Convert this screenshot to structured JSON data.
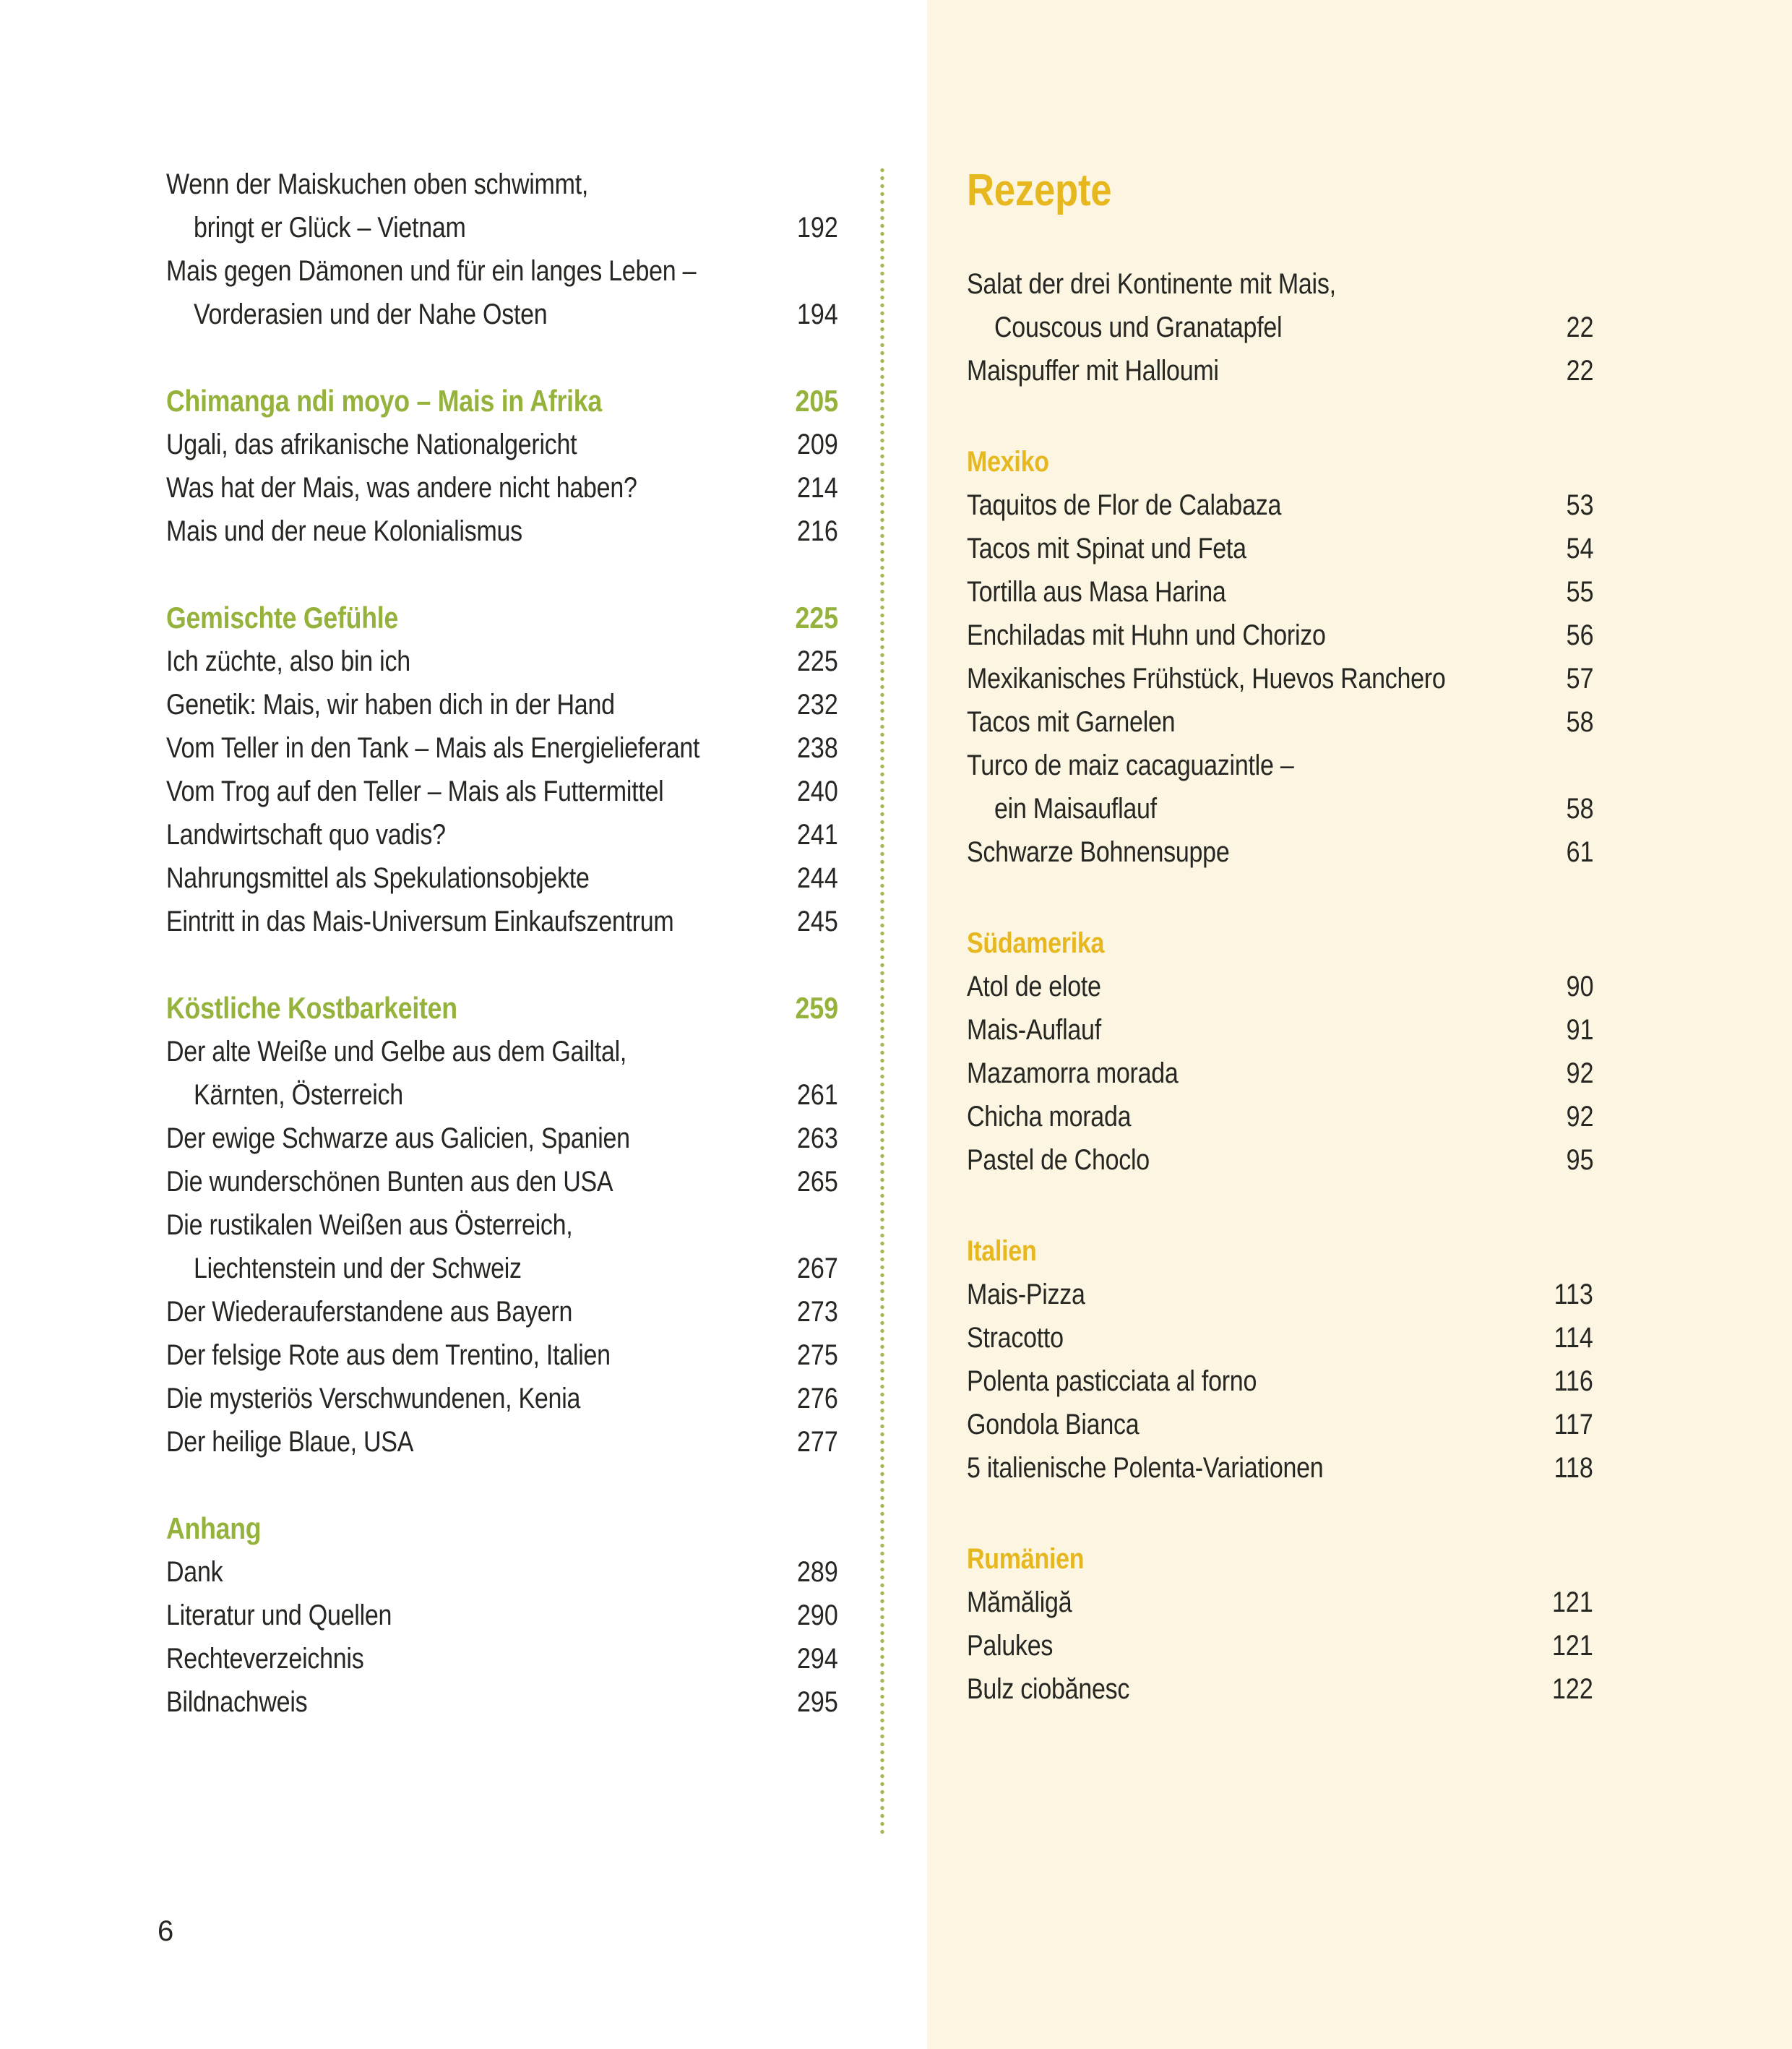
{
  "page": {
    "number": "6"
  },
  "colors": {
    "green": "#95b23c",
    "yellow": "#e7b71f",
    "cream": "#fcf5e1",
    "text": "#262622",
    "divider": "#a6b654"
  },
  "left_column": {
    "rows": [
      {
        "kind": "cont",
        "text": "Wenn der Maiskuchen oben schwimmt,",
        "page": ""
      },
      {
        "kind": "indent",
        "text": "bringt er Glück – Vietnam",
        "page": "192"
      },
      {
        "kind": "cont",
        "text": "Mais gegen Dämonen und für ein langes Leben –",
        "page": ""
      },
      {
        "kind": "indent",
        "text": "Vorderasien und der Nahe Osten",
        "page": "194"
      },
      {
        "kind": "heading",
        "text": "Chimanga ndi moyo – Mais in Afrika",
        "page": "205"
      },
      {
        "kind": "entry",
        "text": "Ugali, das afrikanische Nationalgericht",
        "page": "209"
      },
      {
        "kind": "entry",
        "text": "Was hat der Mais, was andere nicht haben?",
        "page": "214"
      },
      {
        "kind": "entry",
        "text": "Mais und der neue Kolonialismus",
        "page": "216"
      },
      {
        "kind": "heading",
        "text": "Gemischte Gefühle",
        "page": "225"
      },
      {
        "kind": "entry",
        "text": "Ich züchte, also bin ich",
        "page": "225"
      },
      {
        "kind": "entry",
        "text": "Genetik: Mais, wir haben dich in der Hand",
        "page": "232"
      },
      {
        "kind": "entry",
        "text": "Vom Teller in den Tank – Mais als Energielieferant",
        "page": "238"
      },
      {
        "kind": "entry",
        "text": "Vom Trog auf den Teller – Mais als Futtermittel",
        "page": "240"
      },
      {
        "kind": "entry",
        "text": "Landwirtschaft quo vadis?",
        "page": "241"
      },
      {
        "kind": "entry",
        "text": "Nahrungsmittel als Spekulationsobjekte",
        "page": "244"
      },
      {
        "kind": "entry",
        "text": "Eintritt in das Mais-Universum Einkaufszentrum",
        "page": "245"
      },
      {
        "kind": "heading",
        "text": "Köstliche Kostbarkeiten",
        "page": "259"
      },
      {
        "kind": "cont",
        "text": "Der alte Weiße und Gelbe aus dem Gailtal,",
        "page": ""
      },
      {
        "kind": "indent",
        "text": "Kärnten, Österreich",
        "page": "261"
      },
      {
        "kind": "entry",
        "text": "Der ewige Schwarze aus Galicien, Spanien",
        "page": "263"
      },
      {
        "kind": "entry",
        "text": "Die wunderschönen Bunten aus den USA",
        "page": "265"
      },
      {
        "kind": "cont",
        "text": "Die rustikalen Weißen aus Österreich,",
        "page": ""
      },
      {
        "kind": "indent",
        "text": "Liechtenstein und der Schweiz",
        "page": "267"
      },
      {
        "kind": "entry",
        "text": "Der Wiederauferstandene aus Bayern",
        "page": "273"
      },
      {
        "kind": "entry",
        "text": "Der felsige Rote aus dem Trentino, Italien",
        "page": "275"
      },
      {
        "kind": "entry",
        "text": "Die mysteriös Verschwundenen, Kenia",
        "page": "276"
      },
      {
        "kind": "entry",
        "text": "Der heilige Blaue, USA",
        "page": "277"
      },
      {
        "kind": "heading",
        "text": "Anhang",
        "page": ""
      },
      {
        "kind": "entry",
        "text": "Dank",
        "page": "289"
      },
      {
        "kind": "entry",
        "text": "Literatur und Quellen",
        "page": "290"
      },
      {
        "kind": "entry",
        "text": "Rechteverzeichnis",
        "page": "294"
      },
      {
        "kind": "entry",
        "text": "Bildnachweis",
        "page": "295"
      }
    ]
  },
  "right_column": {
    "title": "Rezepte",
    "rows": [
      {
        "kind": "cont",
        "text": "Salat der drei Kontinente mit Mais,",
        "page": ""
      },
      {
        "kind": "indent",
        "text": "Couscous und Granatapfel",
        "page": "22"
      },
      {
        "kind": "entry",
        "text": "Maispuffer mit Halloumi",
        "page": "22"
      },
      {
        "kind": "heading",
        "text": "Mexiko",
        "page": ""
      },
      {
        "kind": "entry",
        "text": "Taquitos de Flor de Calabaza",
        "page": "53"
      },
      {
        "kind": "entry",
        "text": "Tacos mit Spinat und Feta",
        "page": "54"
      },
      {
        "kind": "entry",
        "text": "Tortilla aus Masa Harina",
        "page": "55"
      },
      {
        "kind": "entry",
        "text": "Enchiladas mit Huhn und Chorizo",
        "page": "56"
      },
      {
        "kind": "entry",
        "text": "Mexikanisches Frühstück, Huevos Ranchero",
        "page": "57"
      },
      {
        "kind": "entry",
        "text": "Tacos mit Garnelen",
        "page": "58"
      },
      {
        "kind": "cont",
        "text": "Turco de maiz cacaguazintle –",
        "page": ""
      },
      {
        "kind": "indent",
        "text": "ein Maisauflauf",
        "page": "58"
      },
      {
        "kind": "entry",
        "text": "Schwarze Bohnensuppe",
        "page": "61"
      },
      {
        "kind": "heading",
        "text": "Südamerika",
        "page": ""
      },
      {
        "kind": "entry",
        "text": "Atol de elote",
        "page": "90"
      },
      {
        "kind": "entry",
        "text": "Mais-Auflauf",
        "page": "91"
      },
      {
        "kind": "entry",
        "text": "Mazamorra morada",
        "page": "92"
      },
      {
        "kind": "entry",
        "text": "Chicha morada",
        "page": "92"
      },
      {
        "kind": "entry",
        "text": "Pastel de Choclo",
        "page": "95"
      },
      {
        "kind": "heading",
        "text": "Italien",
        "page": ""
      },
      {
        "kind": "entry",
        "text": "Mais-Pizza",
        "page": "113"
      },
      {
        "kind": "entry",
        "text": "Stracotto",
        "page": "114"
      },
      {
        "kind": "entry",
        "text": "Polenta pasticciata al forno",
        "page": "116"
      },
      {
        "kind": "entry",
        "text": "Gondola Bianca",
        "page": "117"
      },
      {
        "kind": "entry",
        "text": "5 italienische Polenta-Variationen",
        "page": "118"
      },
      {
        "kind": "heading",
        "text": "Rumänien",
        "page": ""
      },
      {
        "kind": "entry",
        "text": "Mămăligă",
        "page": "121"
      },
      {
        "kind": "entry",
        "text": "Palukes",
        "page": "121"
      },
      {
        "kind": "entry",
        "text": "Bulz ciobănesc",
        "page": "122"
      }
    ]
  }
}
